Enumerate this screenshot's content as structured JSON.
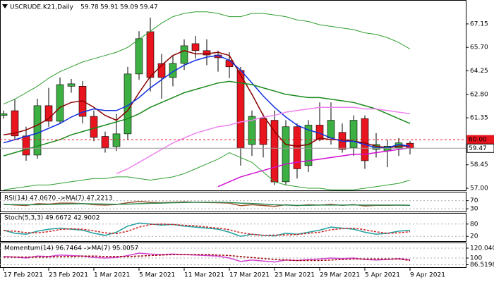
{
  "chart_data": [
    {
      "type": "candlestick",
      "title": "USCRUDE.K21,Daily",
      "categories": [
        "17 Feb 2021",
        null,
        null,
        null,
        "23 Feb 2021",
        null,
        null,
        null,
        "1 Mar 2021",
        null,
        null,
        null,
        "5 Mar 2021",
        null,
        null,
        null,
        "11 Mar 2021",
        null,
        null,
        null,
        "17 Mar 2021",
        null,
        null,
        null,
        "23 Mar 2021",
        null,
        null,
        null,
        "29 Mar 2021",
        null,
        null,
        null,
        "5 Apr 2021",
        null,
        null,
        null,
        "9 Apr 2021"
      ],
      "open": [
        61.5,
        61.79,
        60.23,
        59.05,
        62.1,
        61.14,
        63.3,
        63.3,
        61.44,
        60.2,
        59.57,
        60.36,
        64.06,
        66.67,
        64.7,
        63.84,
        64.71,
        65.93,
        65.5,
        65.23,
        64.9,
        64.28,
        59.7,
        61.31,
        61.2,
        57.4,
        60.8,
        58.4,
        60.9,
        60.1,
        60.45,
        59.5,
        61.3,
        59.4,
        59.3,
        59.5,
        59.78
      ],
      "high": [
        61.8,
        62.53,
        60.8,
        62.53,
        63.2,
        63.84,
        63.75,
        63.62,
        61.8,
        60.5,
        61.6,
        64.5,
        66.7,
        67.54,
        65.3,
        65.2,
        66.2,
        66.4,
        66.2,
        65.5,
        65.4,
        64.5,
        61.8,
        61.6,
        61.8,
        61.2,
        61.0,
        61.2,
        62.3,
        62.3,
        61.0,
        61.5,
        61.5,
        60.4,
        60.0,
        60.1,
        59.91
      ],
      "low": [
        61.3,
        60.0,
        58.7,
        58.83,
        60.8,
        61.0,
        62.9,
        61.0,
        59.9,
        59.2,
        59.3,
        60.0,
        63.7,
        62.97,
        62.53,
        63.3,
        64.3,
        65.0,
        64.6,
        64.2,
        63.8,
        58.4,
        59.0,
        58.9,
        57.2,
        57.2,
        57.6,
        58.0,
        59.9,
        59.7,
        59.2,
        59.0,
        58.2,
        58.9,
        58.3,
        59.0,
        59.09
      ],
      "close": [
        61.6,
        60.23,
        59.05,
        62.1,
        61.14,
        63.4,
        63.45,
        61.44,
        60.14,
        59.5,
        60.36,
        64.06,
        66.24,
        63.84,
        63.84,
        64.71,
        65.8,
        65.5,
        65.23,
        65.06,
        64.5,
        59.49,
        61.44,
        59.7,
        57.39,
        60.8,
        58.2,
        60.9,
        60.0,
        61.2,
        59.4,
        61.2,
        58.7,
        59.7,
        59.6,
        59.8,
        59.47
      ],
      "up_color": "#3cb043",
      "down_color": "#e8141e",
      "series": [
        {
          "color": "#8b0000",
          "values": [
            60.3,
            60.4,
            60.6,
            60.9,
            61.3,
            62.0,
            62.3,
            62.4,
            62.0,
            61.5,
            61.2,
            61.8,
            62.9,
            63.9,
            64.6,
            65.2,
            65.5,
            65.3,
            65.3,
            65.4,
            65.2,
            64.0,
            62.8,
            61.5,
            60.5,
            59.7,
            59.6,
            59.7,
            60.1,
            60.0,
            60.0,
            59.9,
            59.8,
            59.6,
            59.5,
            59.6,
            59.6
          ]
        },
        {
          "color": "#1030e0",
          "values": [
            59.8,
            60.0,
            60.2,
            60.4,
            60.7,
            61.0,
            61.4,
            61.7,
            61.9,
            61.8,
            61.8,
            62.1,
            62.6,
            63.2,
            63.7,
            64.2,
            64.6,
            64.9,
            65.1,
            65.2,
            64.9,
            64.3,
            63.5,
            62.7,
            62.0,
            61.4,
            60.9,
            60.6,
            60.4,
            60.1,
            59.9,
            59.9,
            59.7,
            59.5,
            59.5,
            59.7,
            59.6
          ]
        },
        {
          "color": "#1a8a1a",
          "values": [
            59.0,
            59.2,
            59.4,
            59.6,
            59.8,
            60.0,
            60.3,
            60.5,
            60.7,
            60.9,
            61.1,
            61.3,
            61.6,
            62.0,
            62.3,
            62.6,
            62.9,
            63.1,
            63.3,
            63.5,
            63.6,
            63.5,
            63.4,
            63.2,
            63.0,
            62.8,
            62.7,
            62.6,
            62.6,
            62.5,
            62.4,
            62.3,
            62.1,
            61.9,
            61.6,
            61.3,
            61.0
          ]
        },
        {
          "color": "#2e9e2e",
          "thin": true,
          "values": [
            62.2,
            62.5,
            62.9,
            63.3,
            63.8,
            64.2,
            64.5,
            64.8,
            65.0,
            65.2,
            65.4,
            65.7,
            66.2,
            66.7,
            67.2,
            67.6,
            67.8,
            67.9,
            67.9,
            67.8,
            67.6,
            67.6,
            67.8,
            67.8,
            67.7,
            67.6,
            67.4,
            67.3,
            67.1,
            67.0,
            66.9,
            66.8,
            66.6,
            66.5,
            66.3,
            66.0,
            65.6
          ]
        },
        {
          "color": "#2e9e2e",
          "thin": true,
          "values": [
            56.9,
            57.0,
            57.1,
            57.2,
            57.2,
            57.3,
            57.4,
            57.5,
            57.6,
            57.6,
            57.7,
            57.7,
            57.6,
            57.5,
            57.6,
            57.7,
            57.9,
            58.2,
            58.5,
            58.8,
            59.2,
            58.9,
            58.6,
            58.0,
            57.4,
            57.2,
            57.1,
            57.0,
            57.0,
            56.9,
            56.9,
            56.9,
            57.0,
            57.1,
            57.2,
            57.3,
            57.5
          ]
        },
        {
          "color": "#ee82ee",
          "values": [
            null,
            null,
            null,
            null,
            null,
            null,
            null,
            null,
            null,
            null,
            57.9,
            58.2,
            58.6,
            59.0,
            59.4,
            59.8,
            60.1,
            60.4,
            60.6,
            60.8,
            60.9,
            61.1,
            61.2,
            61.4,
            61.5,
            61.7,
            61.8,
            61.9,
            62.0,
            62.0,
            62.0,
            62.0,
            61.9,
            61.9,
            61.8,
            61.7,
            61.6
          ]
        },
        {
          "color": "#d010d0",
          "values": [
            null,
            null,
            null,
            null,
            null,
            null,
            null,
            null,
            null,
            null,
            null,
            null,
            null,
            null,
            null,
            null,
            null,
            null,
            null,
            57.1,
            57.4,
            57.7,
            57.9,
            58.1,
            58.3,
            58.5,
            58.6,
            58.7,
            58.8,
            58.9,
            59.0,
            59.1,
            59.1,
            59.2,
            59.3,
            59.4,
            59.5
          ]
        }
      ],
      "levels": [
        {
          "value": 60,
          "label": "60.00",
          "color": "#e8141e",
          "dashed": true
        },
        {
          "value": 59.47,
          "label": "59.47",
          "color": "#999999"
        }
      ],
      "ylim": [
        56.87,
        68.54
      ],
      "yticks": [
        {
          "value": 67.15,
          "label": "67.15"
        },
        {
          "value": 65.7,
          "label": "65.70"
        },
        {
          "value": 64.25,
          "label": "64.25"
        },
        {
          "value": 62.8,
          "label": "62.80"
        },
        61.35,
        58.45,
        {
          "value": 57,
          "label": "57.00"
        }
      ]
    },
    {
      "type": "line",
      "title": "RSI(14) 47.0670 ->MA(7) 47.2213",
      "series": [
        {
          "color": "#a0522d",
          "values": [
            52,
            49,
            46,
            55,
            53,
            58,
            58,
            55,
            50,
            48,
            51,
            60,
            66,
            62,
            60,
            62,
            64,
            62,
            61,
            60,
            58,
            45,
            50,
            46,
            42,
            50,
            45,
            50,
            48,
            52,
            47,
            51,
            44,
            47,
            47,
            48,
            47.07
          ]
        },
        {
          "color": "#2e8b57",
          "values": [
            51,
            51,
            50,
            50,
            51,
            53,
            54,
            55,
            54,
            53,
            52,
            53,
            55,
            57,
            58,
            60,
            61,
            62,
            62,
            62,
            61,
            58,
            56,
            53,
            50,
            48,
            47,
            47,
            48,
            48,
            48,
            49,
            48,
            48,
            48,
            48,
            47.22
          ]
        }
      ],
      "ylim": [
        20,
        100
      ],
      "yticks": [
        70,
        30
      ]
    },
    {
      "type": "line",
      "title": "Stoch(5,3,3) 49.6672 42.9002",
      "series": [
        {
          "color": "#20a0a0",
          "values": [
            50,
            35,
            30,
            45,
            55,
            60,
            55,
            50,
            35,
            25,
            40,
            70,
            85,
            80,
            75,
            78,
            70,
            65,
            60,
            55,
            40,
            20,
            30,
            25,
            22,
            35,
            30,
            40,
            50,
            65,
            60,
            55,
            40,
            30,
            35,
            45,
            49.67
          ]
        },
        {
          "color": "#d02020",
          "dashed": true,
          "values": [
            48,
            45,
            38,
            37,
            43,
            53,
            57,
            55,
            47,
            37,
            33,
            45,
            65,
            78,
            80,
            78,
            74,
            71,
            65,
            60,
            52,
            38,
            30,
            25,
            26,
            27,
            29,
            35,
            40,
            52,
            58,
            60,
            52,
            42,
            35,
            37,
            42.9
          ]
        }
      ],
      "ylim": [
        0,
        100
      ],
      "yticks": [
        80,
        20
      ]
    },
    {
      "type": "line",
      "title": "Momentum(14) 96.7464 ->MA(7) 95.0057",
      "series": [
        {
          "color": "#d040d0",
          "values": [
            103,
            102,
            100,
            104,
            103,
            106,
            105,
            104,
            101,
            100,
            101,
            105,
            110,
            108,
            107,
            108,
            107,
            106,
            105,
            104,
            100,
            93,
            96,
            94,
            92,
            96,
            95,
            97,
            98,
            100,
            99,
            100,
            97,
            96,
            97,
            99,
            96.75
          ]
        },
        {
          "color": "#a00000",
          "dashed": true,
          "values": [
            102,
            102,
            102,
            102,
            102,
            103,
            103,
            104,
            104,
            103,
            103,
            103,
            104,
            105,
            106,
            107,
            107,
            107,
            107,
            106,
            105,
            103,
            101,
            99,
            97,
            96,
            95,
            95,
            95,
            96,
            97,
            98,
            98,
            98,
            98,
            98,
            95.01
          ]
        }
      ],
      "ylim": [
        82.9,
        131.4
      ],
      "yticks": [
        120.0408,
        100,
        86.5198
      ]
    }
  ]
}
